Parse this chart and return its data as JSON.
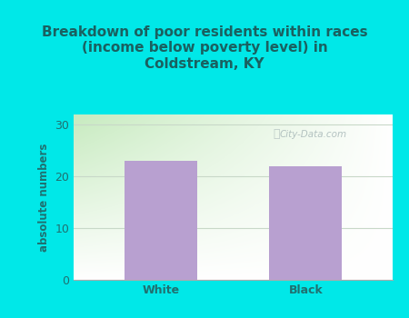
{
  "categories": [
    "White",
    "Black"
  ],
  "values": [
    23,
    22
  ],
  "bar_color": "#b8a0d0",
  "title": "Breakdown of poor residents within races\n(income below poverty level) in\nColdstream, KY",
  "title_color": "#1a6060",
  "title_fontsize": 11.0,
  "ylabel": "absolute numbers",
  "ylabel_color": "#207070",
  "ylabel_fontsize": 8.5,
  "tick_label_color": "#207070",
  "tick_fontsize": 9,
  "background_color": "#00e8e8",
  "plot_bg_color_topleft": "#d8edd8",
  "plot_bg_color_topright": "#f0f8f0",
  "plot_bg_color_bottomleft": "#c8e8c0",
  "plot_bg_color_bottomright": "#ffffff",
  "ylim": [
    0,
    32
  ],
  "yticks": [
    0,
    10,
    20,
    30
  ],
  "grid_color": "#c8d8c8",
  "watermark_text": "City-Data.com",
  "watermark_color": "#a8b8b8",
  "bar_width": 0.5
}
